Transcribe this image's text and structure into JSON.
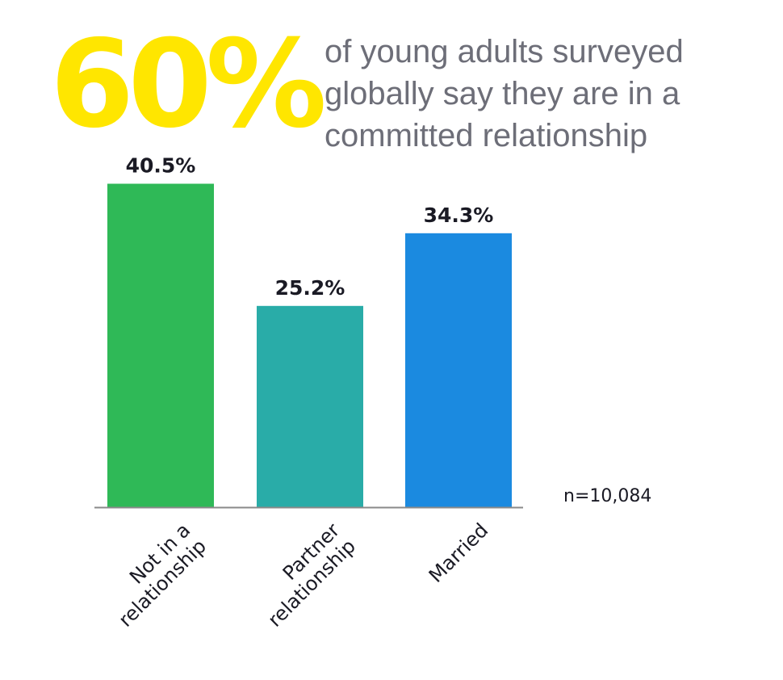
{
  "headline": {
    "stat": "60%",
    "lines": [
      "of young adults surveyed",
      "globally say they are in a",
      "committed relationship"
    ]
  },
  "sample_note": "n=10,084",
  "colors": {
    "stat": "#ffe600",
    "text_gray": "#6d6e78"
  },
  "chart_data": {
    "type": "bar",
    "categories": [
      [
        "Not in a",
        "relationship"
      ],
      [
        "Partner",
        "relationship"
      ],
      [
        "Married"
      ]
    ],
    "values": [
      40.5,
      25.2,
      34.3
    ],
    "value_labels": [
      "40.5%",
      "25.2%",
      "34.3%"
    ],
    "bar_colors": [
      "#2fb957",
      "#29aca8",
      "#1b8ae0"
    ],
    "ylim": [
      0,
      45
    ],
    "grid": false,
    "category_label_rotation": "diagonal"
  }
}
